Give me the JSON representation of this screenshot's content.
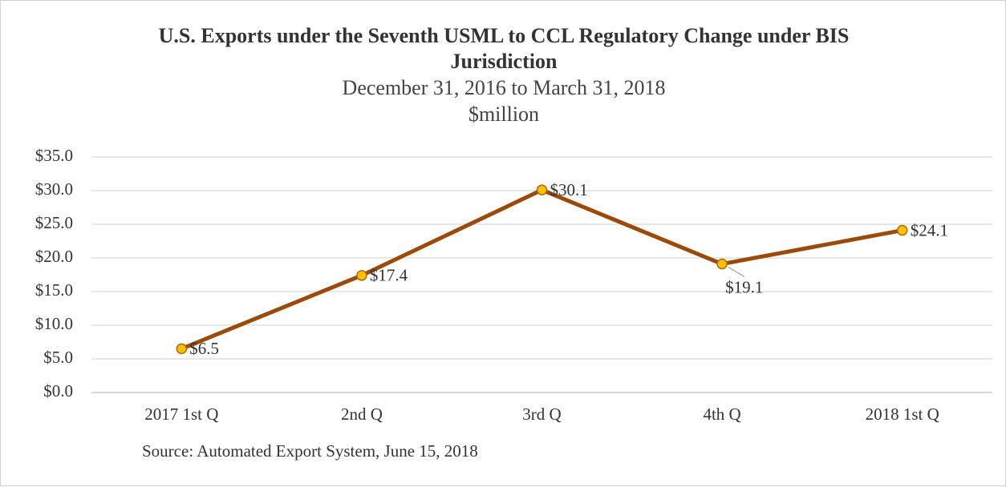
{
  "chart_data": {
    "type": "line",
    "title": "U.S. Exports under the Seventh USML to CCL Regulatory Change under BIS Jurisdiction",
    "subtitle": [
      "December 31, 2016 to March 31, 2018",
      "$million"
    ],
    "categories": [
      "2017 1st Q",
      "2nd Q",
      "3rd Q",
      "4th Q",
      "2018 1st Q"
    ],
    "series": [
      {
        "name": "U.S. Exports",
        "color": "#9c4a0a",
        "marker_color": "#ffc000",
        "values": [
          6.5,
          17.4,
          30.1,
          19.1,
          24.1
        ],
        "value_labels": [
          "$6.5",
          "$17.4",
          "$30.1",
          "$19.1",
          "$24.1"
        ]
      }
    ],
    "ylim": [
      0,
      35
    ],
    "yticks": [
      {
        "value": 0,
        "label": "$0.0"
      },
      {
        "value": 5,
        "label": "$5.0"
      },
      {
        "value": 10,
        "label": "$10.0"
      },
      {
        "value": 15,
        "label": "$15.0"
      },
      {
        "value": 20,
        "label": "$20.0"
      },
      {
        "value": 25,
        "label": "$25.0"
      },
      {
        "value": 30,
        "label": "$30.0"
      },
      {
        "value": 35,
        "label": "$35.0"
      }
    ],
    "grid": true,
    "source": "Source: Automated Export System, June 15, 2018"
  }
}
